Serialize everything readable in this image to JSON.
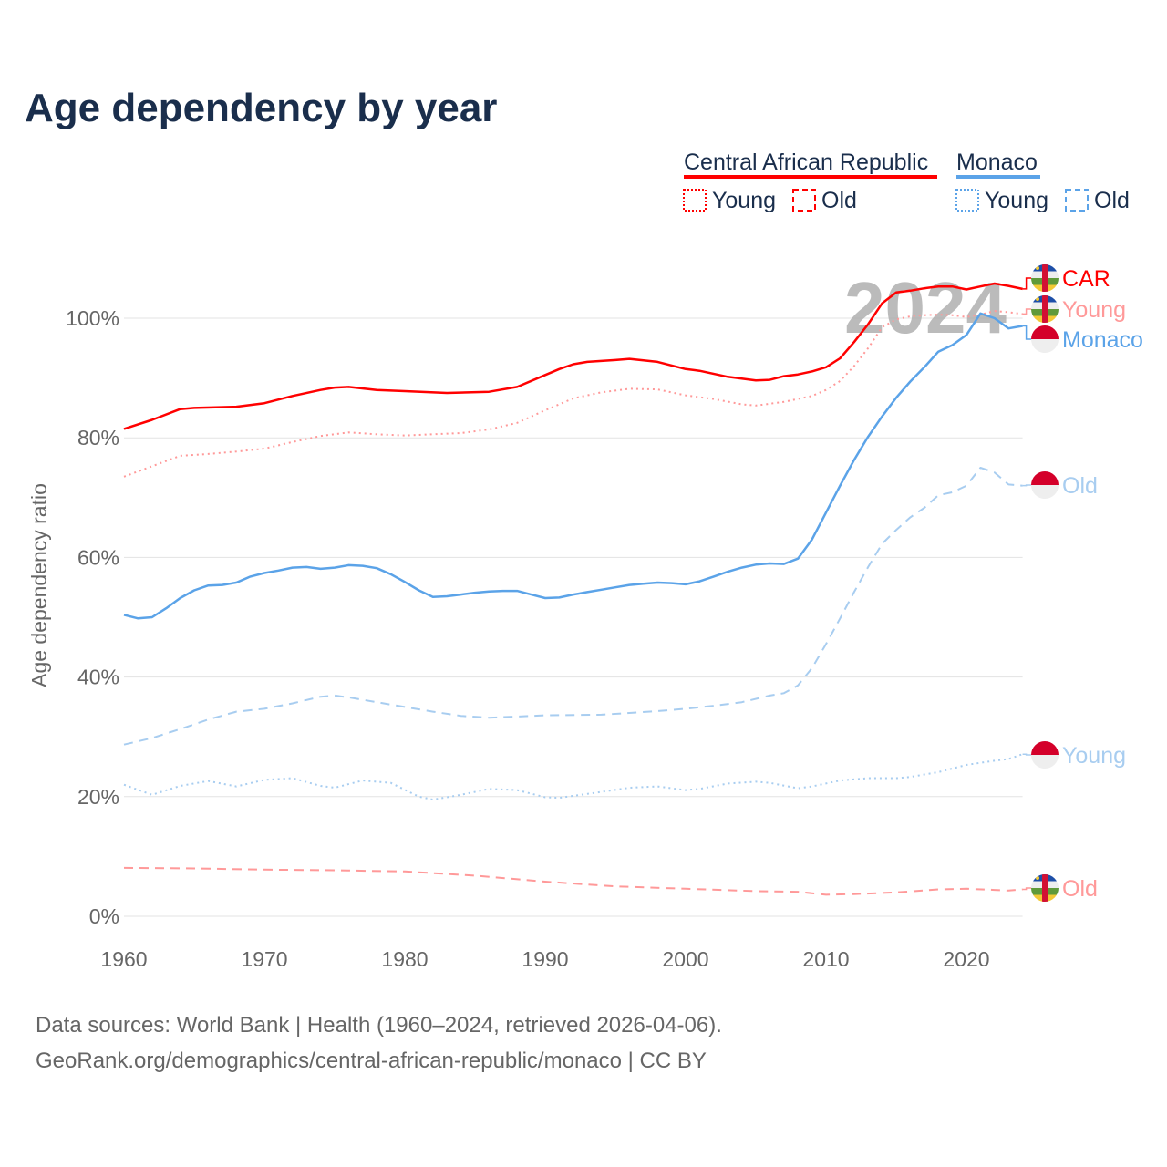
{
  "chart_data": {
    "type": "line",
    "title": "Age dependency by year",
    "ylabel": "Age dependency ratio",
    "xlabel": "",
    "xlim": [
      1960,
      2024
    ],
    "ylim": [
      0,
      110
    ],
    "grid": true,
    "x_ticks": [
      "1960",
      "1970",
      "1980",
      "1990",
      "2000",
      "2010",
      "2020"
    ],
    "x_tick_values": [
      1960,
      1970,
      1980,
      1990,
      2000,
      2010,
      2020
    ],
    "y_ticks": [
      "0%",
      "20%",
      "40%",
      "60%",
      "80%",
      "100%"
    ],
    "y_tick_values": [
      0,
      20,
      40,
      60,
      80,
      100
    ],
    "year_watermark": "2024",
    "legend": {
      "placement": "top-right",
      "groups": [
        {
          "name": "Central African Republic",
          "color": "#ff0000",
          "items": [
            "Young",
            "Old"
          ]
        },
        {
          "name": "Monaco",
          "color": "#5ba3e8",
          "items": [
            "Young",
            "Old"
          ]
        }
      ]
    },
    "series": [
      {
        "name": "Central African Republic",
        "short": "CAR",
        "kind": "total",
        "color": "#ff0000",
        "dash": "solid",
        "x": [
          1960,
          1962,
          1964,
          1965,
          1968,
          1970,
          1972,
          1974,
          1975,
          1976,
          1978,
          1980,
          1983,
          1986,
          1988,
          1990,
          1991,
          1992,
          1993,
          1995,
          1996,
          1998,
          2000,
          2001,
          2003,
          2005,
          2006,
          2007,
          2008,
          2009,
          2010,
          2011,
          2012,
          2013,
          2014,
          2015,
          2016,
          2017,
          2018,
          2019,
          2020,
          2021,
          2022,
          2023,
          2024
        ],
        "y": [
          81.5,
          83,
          84.8,
          85,
          85.2,
          85.8,
          87,
          88,
          88.4,
          88.5,
          88,
          87.8,
          87.5,
          87.7,
          88.5,
          90.5,
          91.5,
          92.3,
          92.7,
          93,
          93.2,
          92.7,
          91.5,
          91.2,
          90.2,
          89.6,
          89.7,
          90.3,
          90.6,
          91.1,
          91.8,
          93.3,
          96,
          99,
          102.5,
          104.3,
          104.6,
          105,
          105.3,
          105.3,
          104.8,
          105.3,
          105.8,
          105.4,
          104.9
        ],
        "end_label": "CAR"
      },
      {
        "name": "Central African Republic Young",
        "kind": "young",
        "color": "#ff9999",
        "dash": "dotted",
        "x": [
          1960,
          1964,
          1966,
          1968,
          1970,
          1972,
          1974,
          1976,
          1978,
          1980,
          1982,
          1984,
          1986,
          1988,
          1990,
          1992,
          1994,
          1996,
          1998,
          2000,
          2002,
          2004,
          2005,
          2007,
          2009,
          2010,
          2011,
          2012,
          2013,
          2014,
          2015,
          2016,
          2017,
          2018,
          2019,
          2020,
          2021,
          2022,
          2023,
          2024
        ],
        "y": [
          73.5,
          77,
          77.3,
          77.7,
          78.2,
          79.3,
          80.3,
          80.9,
          80.6,
          80.4,
          80.6,
          80.8,
          81.4,
          82.5,
          84.6,
          86.6,
          87.6,
          88.2,
          88.1,
          87.1,
          86.5,
          85.6,
          85.4,
          86,
          87,
          88,
          89.5,
          92,
          95,
          98.5,
          99.8,
          100.3,
          100.5,
          100.6,
          100.5,
          100.2,
          100.6,
          101.2,
          101,
          100.7
        ],
        "end_label": "Young"
      },
      {
        "name": "Monaco",
        "kind": "total",
        "color": "#5ba3e8",
        "dash": "solid",
        "x": [
          1960,
          1961,
          1962,
          1963,
          1964,
          1965,
          1966,
          1967,
          1968,
          1969,
          1970,
          1971,
          1972,
          1973,
          1974,
          1975,
          1976,
          1977,
          1978,
          1979,
          1980,
          1981,
          1982,
          1983,
          1984,
          1985,
          1986,
          1987,
          1988,
          1989,
          1990,
          1991,
          1992,
          1993,
          1994,
          1995,
          1996,
          1997,
          1998,
          1999,
          2000,
          2001,
          2002,
          2003,
          2004,
          2005,
          2006,
          2007,
          2008,
          2009,
          2010,
          2011,
          2012,
          2013,
          2014,
          2015,
          2016,
          2017,
          2018,
          2019,
          2020,
          2021,
          2022,
          2023,
          2024
        ],
        "y": [
          50.4,
          49.8,
          50,
          51.5,
          53.2,
          54.5,
          55.3,
          55.4,
          55.8,
          56.8,
          57.4,
          57.8,
          58.3,
          58.4,
          58.1,
          58.3,
          58.7,
          58.6,
          58.2,
          57.2,
          55.9,
          54.5,
          53.4,
          53.5,
          53.8,
          54.1,
          54.3,
          54.4,
          54.4,
          53.8,
          53.2,
          53.3,
          53.8,
          54.2,
          54.6,
          55,
          55.4,
          55.6,
          55.8,
          55.7,
          55.5,
          56,
          56.8,
          57.6,
          58.3,
          58.8,
          59,
          58.9,
          59.8,
          63,
          67.5,
          72,
          76.3,
          80.2,
          83.6,
          86.7,
          89.4,
          91.8,
          94.4,
          95.5,
          97.2,
          100.8,
          100,
          98.3,
          98.7
        ],
        "end_label": "Monaco"
      },
      {
        "name": "Monaco Old",
        "kind": "old",
        "color": "#a8cdf0",
        "dash": "dashed",
        "x": [
          1960,
          1962,
          1964,
          1966,
          1968,
          1970,
          1972,
          1974,
          1975,
          1976,
          1978,
          1980,
          1982,
          1984,
          1986,
          1988,
          1990,
          1994,
          1996,
          1998,
          2000,
          2002,
          2004,
          2006,
          2007,
          2008,
          2009,
          2010,
          2011,
          2012,
          2013,
          2014,
          2015,
          2016,
          2017,
          2018,
          2019,
          2020,
          2021,
          2022,
          2023,
          2024
        ],
        "y": [
          28.7,
          29.8,
          31.3,
          32.9,
          34.2,
          34.7,
          35.6,
          36.7,
          36.9,
          36.6,
          35.8,
          35,
          34.2,
          33.5,
          33.2,
          33.4,
          33.6,
          33.7,
          34,
          34.3,
          34.7,
          35.2,
          35.8,
          36.9,
          37.3,
          38.6,
          41.5,
          45.5,
          49.8,
          54.2,
          58.4,
          62.3,
          64.6,
          66.7,
          68.3,
          70.4,
          70.9,
          72,
          75,
          74.2,
          72.2,
          72
        ],
        "end_label": "Old"
      },
      {
        "name": "Monaco Young",
        "kind": "young",
        "color": "#a8cdf0",
        "dash": "dotted",
        "x": [
          1960,
          1962,
          1964,
          1966,
          1968,
          1970,
          1972,
          1974,
          1975,
          1977,
          1979,
          1981,
          1982,
          1984,
          1986,
          1988,
          1990,
          1991,
          1994,
          1996,
          1998,
          2000,
          2001,
          2003,
          2005,
          2006,
          2008,
          2009,
          2011,
          2013,
          2015,
          2016,
          2018,
          2020,
          2022,
          2023,
          2024
        ],
        "y": [
          22,
          20.3,
          21.8,
          22.6,
          21.7,
          22.8,
          23.1,
          21.8,
          21.5,
          22.7,
          22.3,
          20,
          19.5,
          20.3,
          21.3,
          21.1,
          19.9,
          19.8,
          20.8,
          21.5,
          21.7,
          21.1,
          21.3,
          22.2,
          22.5,
          22.3,
          21.4,
          21.7,
          22.7,
          23.1,
          23.1,
          23.3,
          24.1,
          25.3,
          26,
          26.3,
          27.1
        ],
        "end_label": "Young"
      },
      {
        "name": "Central African Republic Old",
        "kind": "old",
        "color": "#ff9999",
        "dash": "dashed",
        "x": [
          1960,
          1965,
          1970,
          1975,
          1980,
          1985,
          1990,
          1995,
          2000,
          2005,
          2008,
          2010,
          2012,
          2015,
          2018,
          2020,
          2022,
          2023,
          2024
        ],
        "y": [
          8.1,
          8.0,
          7.8,
          7.7,
          7.5,
          6.8,
          5.8,
          5.0,
          4.6,
          4.2,
          4.1,
          3.6,
          3.7,
          4.0,
          4.5,
          4.6,
          4.4,
          4.3,
          4.5
        ],
        "end_label": "Old"
      }
    ]
  },
  "source": {
    "line1": "Data sources: World Bank | Health (1960–2024, retrieved 2026-04-06).",
    "line2": "GeoRank.org/demographics/central-african-republic/monaco | CC BY"
  }
}
